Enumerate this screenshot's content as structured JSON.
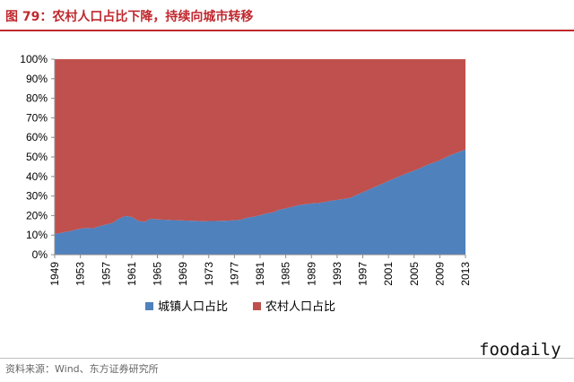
{
  "title": "图 79：农村人口占比下降，持续向城市转移",
  "source": "资料来源：Wind、东方证券研究所",
  "watermark": "foodaily",
  "colors": {
    "title": "#c0282e",
    "urban": "#4f81bd",
    "rural": "#c0504d"
  },
  "chart_data": {
    "type": "area",
    "stacked": true,
    "percent": true,
    "x": [
      1949,
      1950,
      1951,
      1952,
      1953,
      1954,
      1955,
      1956,
      1957,
      1958,
      1959,
      1960,
      1961,
      1962,
      1963,
      1964,
      1965,
      1966,
      1967,
      1968,
      1969,
      1970,
      1971,
      1972,
      1973,
      1974,
      1975,
      1976,
      1977,
      1978,
      1979,
      1980,
      1981,
      1982,
      1983,
      1984,
      1985,
      1986,
      1987,
      1988,
      1989,
      1990,
      1991,
      1992,
      1993,
      1994,
      1995,
      1996,
      1997,
      1998,
      1999,
      2000,
      2001,
      2002,
      2003,
      2004,
      2005,
      2006,
      2007,
      2008,
      2009,
      2010,
      2011,
      2012,
      2013
    ],
    "xticks": [
      "1949",
      "1953",
      "1957",
      "1961",
      "1965",
      "1969",
      "1973",
      "1977",
      "1981",
      "1985",
      "1989",
      "1993",
      "1997",
      "2001",
      "2005",
      "2009",
      "2013"
    ],
    "yticks": [
      "0%",
      "10%",
      "20%",
      "30%",
      "40%",
      "50%",
      "60%",
      "70%",
      "80%",
      "90%",
      "100%"
    ],
    "ylim": [
      0,
      100
    ],
    "grid": false,
    "legend_position": "bottom",
    "series": [
      {
        "name": "城镇人口占比",
        "color": "#4f81bd",
        "values": [
          10.6,
          11.2,
          11.8,
          12.5,
          13.3,
          13.7,
          13.5,
          14.6,
          15.4,
          16.2,
          18.4,
          19.8,
          19.3,
          17.3,
          16.8,
          18.4,
          18.0,
          17.9,
          17.7,
          17.6,
          17.5,
          17.4,
          17.3,
          17.1,
          17.2,
          17.2,
          17.3,
          17.4,
          17.6,
          17.9,
          19.0,
          19.4,
          20.2,
          21.1,
          21.6,
          23.0,
          23.7,
          24.5,
          25.3,
          25.8,
          26.2,
          26.4,
          26.9,
          27.5,
          28.0,
          28.5,
          29.0,
          30.5,
          31.9,
          33.4,
          34.8,
          36.2,
          37.7,
          39.1,
          40.5,
          41.8,
          43.0,
          44.3,
          45.9,
          47.0,
          48.3,
          49.9,
          51.3,
          52.6,
          53.7
        ]
      },
      {
        "name": "农村人口占比",
        "color": "#c0504d",
        "values": [
          89.4,
          88.8,
          88.2,
          87.5,
          86.7,
          86.3,
          86.5,
          85.4,
          84.6,
          83.8,
          81.6,
          80.2,
          80.7,
          82.7,
          83.2,
          81.6,
          82.0,
          82.1,
          82.3,
          82.4,
          82.5,
          82.6,
          82.7,
          82.9,
          82.8,
          82.8,
          82.7,
          82.6,
          82.4,
          82.1,
          81.0,
          80.6,
          79.8,
          78.9,
          78.4,
          77.0,
          76.3,
          75.5,
          74.7,
          74.2,
          73.8,
          73.6,
          73.1,
          72.5,
          72.0,
          71.5,
          71.0,
          69.5,
          68.1,
          66.6,
          65.2,
          63.8,
          62.3,
          60.9,
          59.5,
          58.2,
          57.0,
          55.7,
          54.1,
          53.0,
          51.7,
          50.1,
          48.7,
          47.4,
          46.3
        ]
      }
    ]
  }
}
